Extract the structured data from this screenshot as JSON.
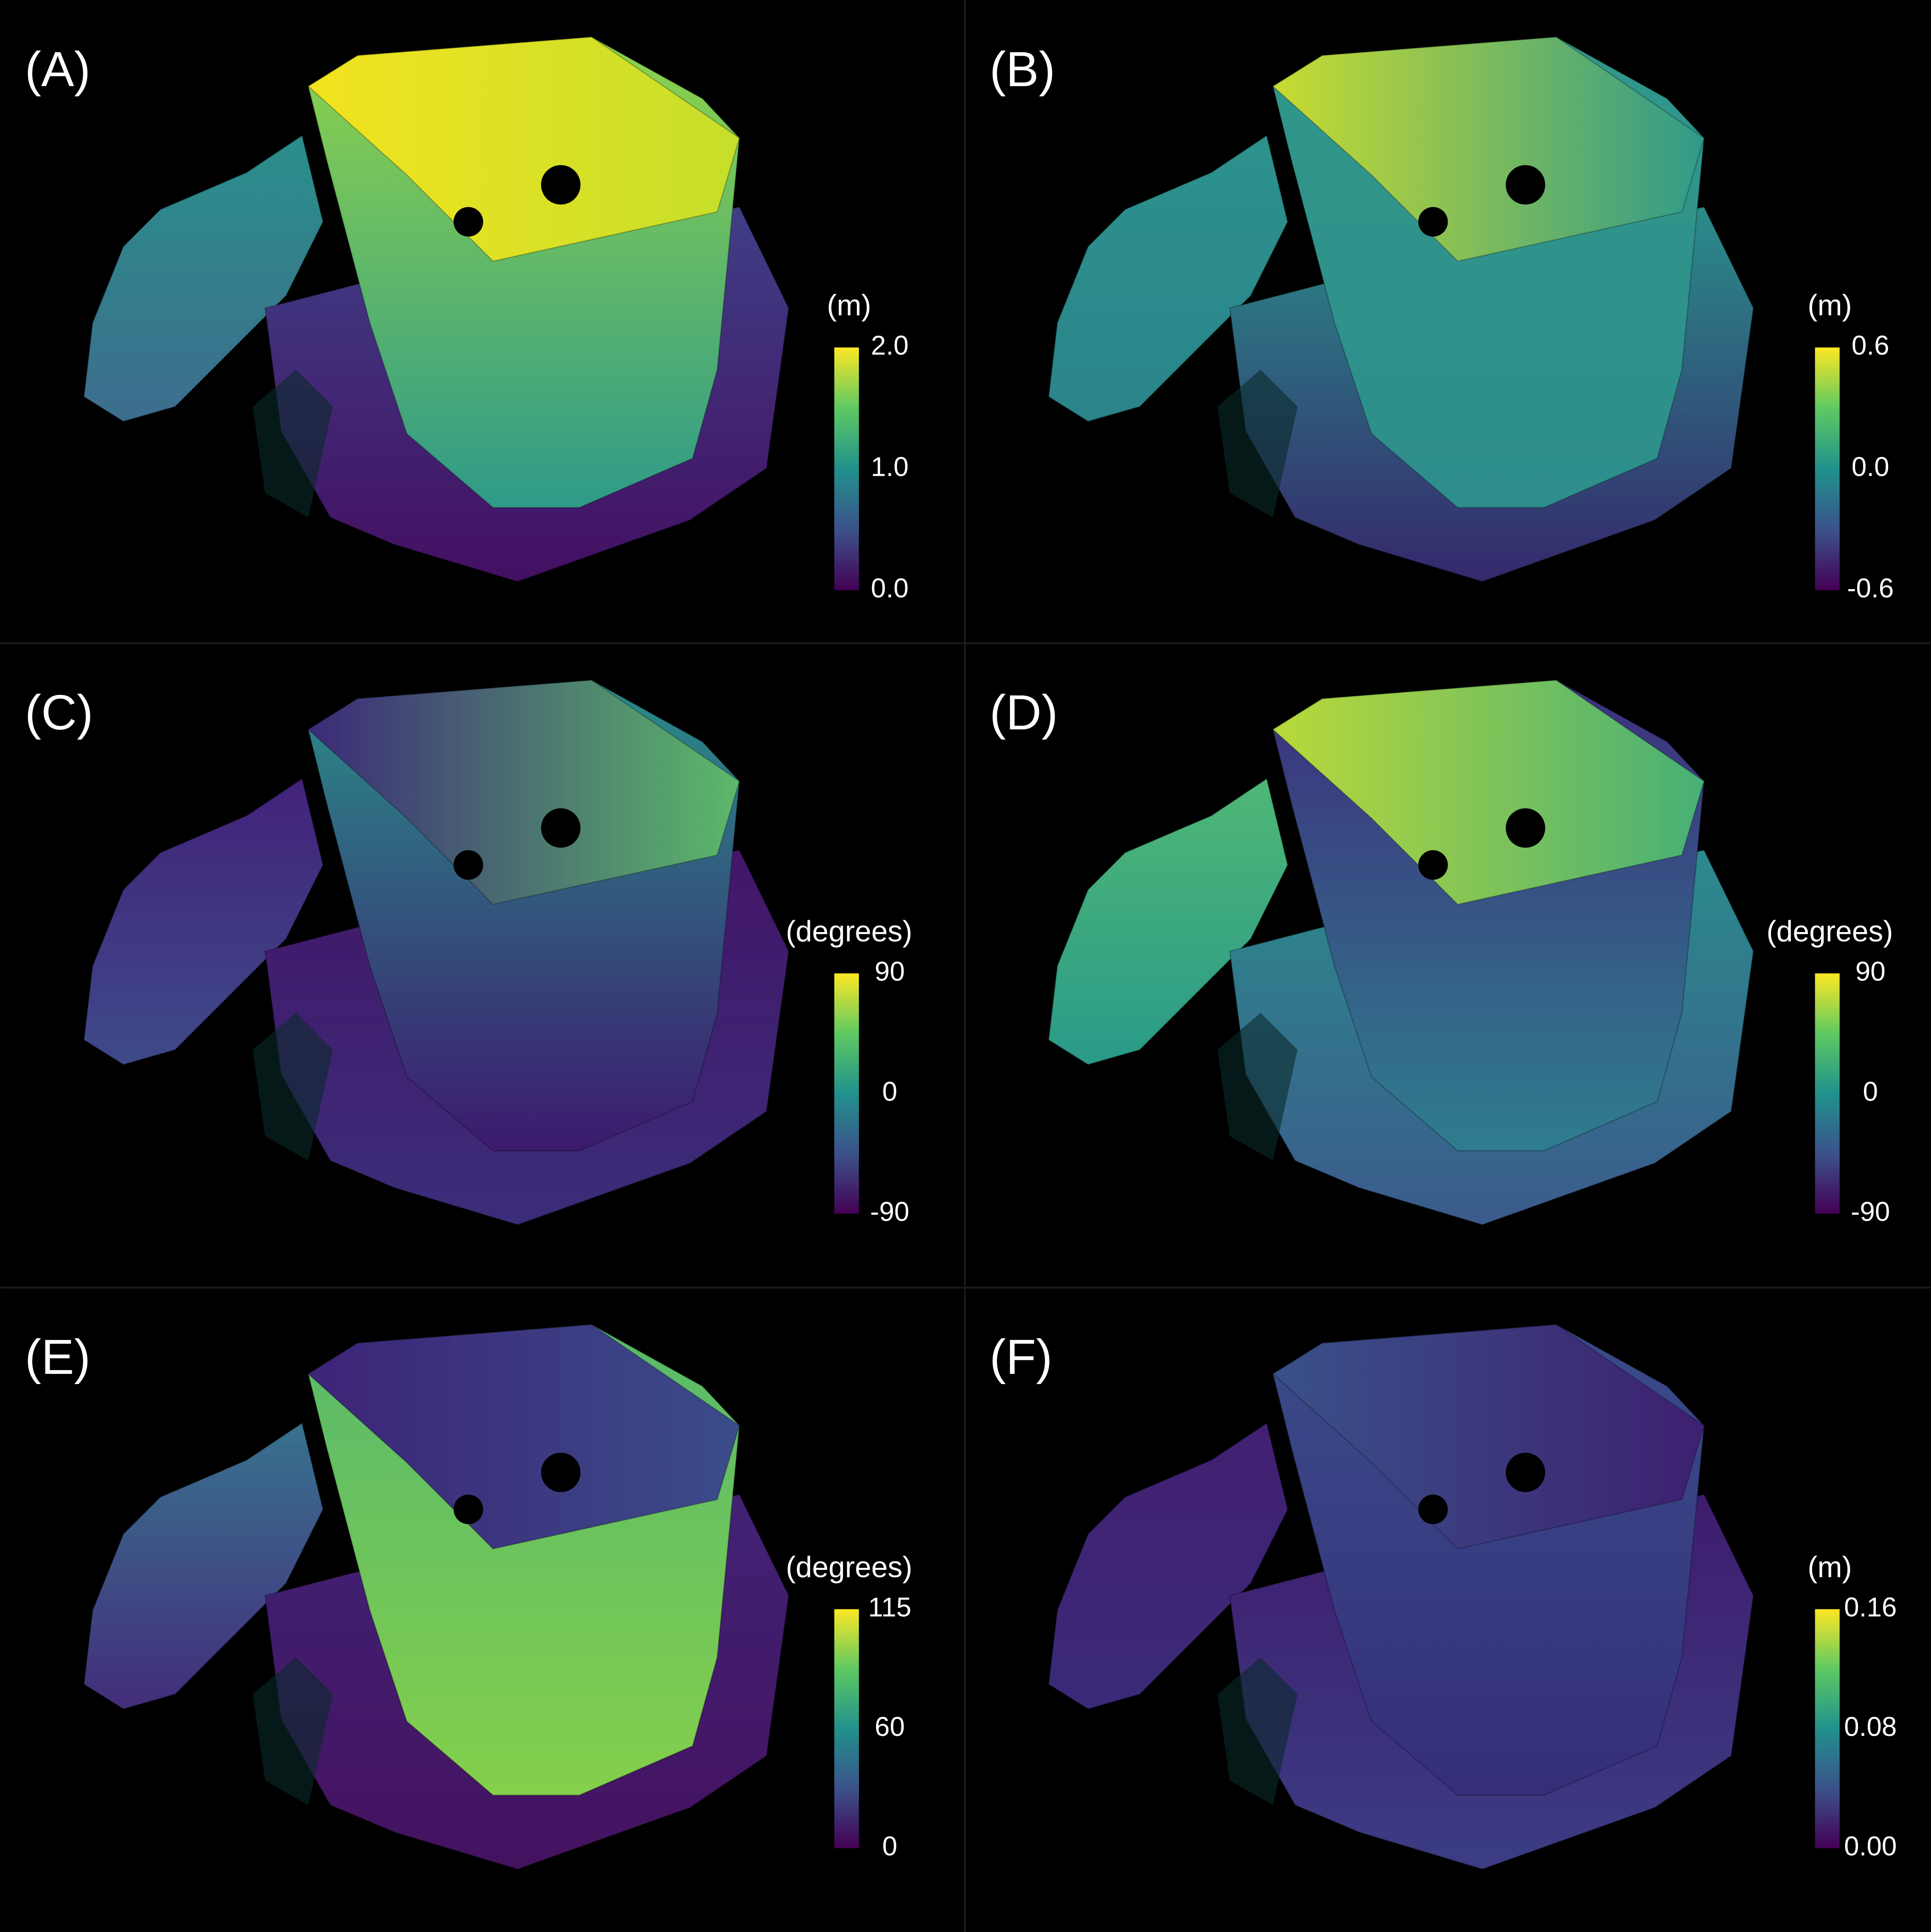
{
  "panels": [
    {
      "label": "(A)",
      "unit": "(m)",
      "ticks": [
        "2.0",
        "1.0",
        "0.0"
      ]
    },
    {
      "label": "(B)",
      "unit": "(m)",
      "ticks": [
        "0.6",
        "0.0",
        "-0.6"
      ]
    },
    {
      "label": "(C)",
      "unit": "(degrees)",
      "ticks": [
        "90",
        "0",
        "-90"
      ]
    },
    {
      "label": "(D)",
      "unit": "(degrees)",
      "ticks": [
        "90",
        "0",
        "-90"
      ]
    },
    {
      "label": "(E)",
      "unit": "(degrees)",
      "ticks": [
        "115",
        "60",
        "0"
      ]
    },
    {
      "label": "(F)",
      "unit": "(m)",
      "ticks": [
        "0.16",
        "0.08",
        "0.00"
      ]
    }
  ]
}
